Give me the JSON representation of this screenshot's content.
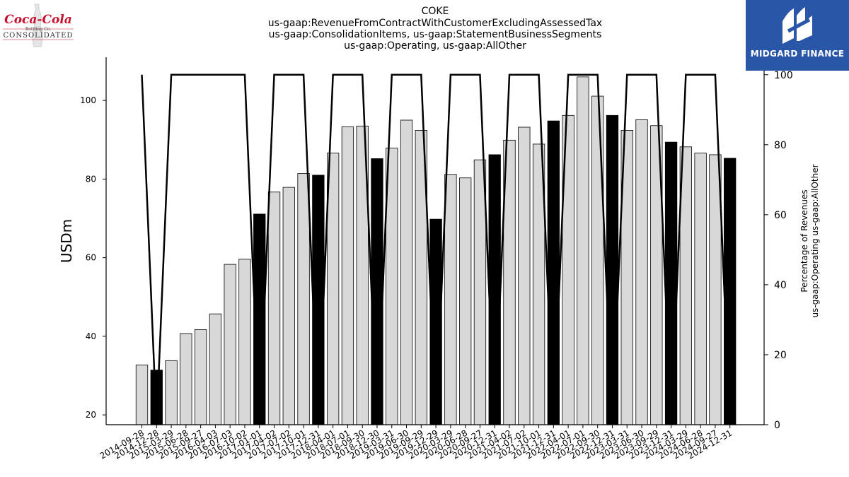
{
  "title_lines": [
    "COKE",
    "us-gaap:RevenueFromContractWithCustomerExcludingAssessedTax",
    "us-gaap:ConsolidationItems, us-gaap:StatementBusinessSegments",
    "us-gaap:Operating, us-gaap:AllOther"
  ],
  "logo_left": {
    "script": "Coca-Cola",
    "line2": "Bottling Co.",
    "line3": "CONSOLIDATED",
    "color": "#c8102e"
  },
  "logo_right": {
    "brand": "MIDGARD FINANCE",
    "background": "#2a56a8"
  },
  "chart_data": {
    "type": "bar",
    "title": "COKE us-gaap:RevenueFromContractWithCustomerExcludingAssessedTax us-gaap:ConsolidationItems, us-gaap:StatementBusinessSegments us-gaap:Operating, us-gaap:AllOther",
    "ylabel": "USDm",
    "y2label_lines": [
      "Percentage of Revenues",
      "us-gaap:Operating us-gaap:AllOther"
    ],
    "ylim": [
      17.5,
      111
    ],
    "y2lim": [
      0,
      105
    ],
    "yticks": [
      20,
      40,
      60,
      80,
      100
    ],
    "y2ticks": [
      0,
      20,
      40,
      60,
      80,
      100
    ],
    "categories": [
      "2014-09-28",
      "2014-12-28",
      "2015-03-29",
      "2015-06-28",
      "2015-09-27",
      "2016-04-03",
      "2016-07-03",
      "2016-10-02",
      "2017-01-01",
      "2017-04-02",
      "2017-07-02",
      "2017-10-01",
      "2017-12-31",
      "2018-04-01",
      "2018-07-01",
      "2018-09-30",
      "2018-12-30",
      "2019-03-31",
      "2019-06-30",
      "2019-09-29",
      "2019-12-29",
      "2020-03-29",
      "2020-06-28",
      "2020-09-27",
      "2020-12-31",
      "2021-04-02",
      "2021-07-02",
      "2021-10-01",
      "2021-12-31",
      "2022-04-01",
      "2022-07-01",
      "2022-09-30",
      "2022-12-31",
      "2023-03-31",
      "2023-06-30",
      "2023-09-29",
      "2023-12-31",
      "2024-03-29",
      "2024-06-28",
      "2024-09-27",
      "2024-12-31"
    ],
    "values": [
      32.7,
      31.4,
      33.8,
      40.7,
      41.7,
      45.7,
      58.3,
      59.6,
      71.1,
      76.7,
      77.9,
      81.4,
      81.0,
      86.6,
      93.3,
      93.5,
      85.2,
      87.9,
      95.0,
      92.4,
      69.8,
      81.2,
      80.3,
      84.9,
      86.2,
      89.9,
      93.2,
      88.9,
      94.8,
      96.2,
      106.0,
      101.1,
      96.2,
      92.4,
      95.1,
      93.6,
      89.4,
      88.2,
      86.6,
      86.2,
      85.3
    ],
    "quarter_end": [
      false,
      true,
      false,
      false,
      false,
      false,
      false,
      false,
      true,
      false,
      false,
      false,
      true,
      false,
      false,
      false,
      true,
      false,
      false,
      false,
      true,
      false,
      false,
      false,
      true,
      false,
      false,
      false,
      true,
      false,
      false,
      false,
      true,
      false,
      false,
      false,
      true,
      false,
      false,
      false,
      true
    ],
    "percentage_line": [
      100,
      0,
      100,
      100,
      100,
      100,
      100,
      100,
      0,
      100,
      100,
      100,
      0,
      100,
      100,
      100,
      0,
      100,
      100,
      100,
      0,
      100,
      100,
      100,
      0,
      100,
      100,
      100,
      0,
      100,
      100,
      100,
      0,
      100,
      100,
      100,
      0,
      100,
      100,
      100,
      0
    ],
    "colors": {
      "bar": "#d8d8d8",
      "bar_quarter_end": "#000000",
      "line": "#000000"
    },
    "grid": false,
    "legend": "none"
  }
}
